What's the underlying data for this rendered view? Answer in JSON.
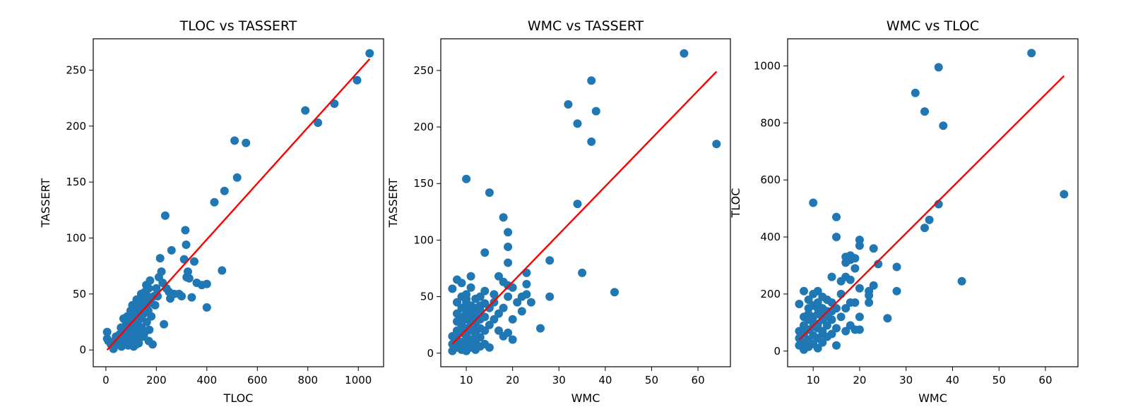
{
  "chart_data": [
    {
      "type": "scatter",
      "title": "TLOC vs TASSERT",
      "xlabel": "TLOC",
      "ylabel": "TASSERT",
      "xlim": [
        -50,
        1100
      ],
      "ylim": [
        -15,
        278
      ],
      "xticks": [
        0,
        200,
        400,
        600,
        800,
        1000
      ],
      "yticks": [
        0,
        50,
        100,
        150,
        200,
        250
      ],
      "point_color": "#1f77b4",
      "fit_color": "#ff0000",
      "fit_line": {
        "x": [
          5,
          1045
        ],
        "y": [
          0,
          260
        ]
      },
      "points": [
        [
          5,
          16
        ],
        [
          5,
          10
        ],
        [
          10,
          8
        ],
        [
          20,
          5
        ],
        [
          25,
          3
        ],
        [
          30,
          1
        ],
        [
          35,
          8
        ],
        [
          40,
          12
        ],
        [
          45,
          6
        ],
        [
          50,
          10
        ],
        [
          55,
          14
        ],
        [
          60,
          8
        ],
        [
          62,
          3
        ],
        [
          65,
          18
        ],
        [
          70,
          12
        ],
        [
          72,
          5
        ],
        [
          75,
          20
        ],
        [
          78,
          9
        ],
        [
          80,
          25
        ],
        [
          82,
          14
        ],
        [
          85,
          30
        ],
        [
          88,
          4
        ],
        [
          90,
          18
        ],
        [
          92,
          8
        ],
        [
          95,
          22
        ],
        [
          98,
          35
        ],
        [
          100,
          28
        ],
        [
          102,
          12
        ],
        [
          105,
          40
        ],
        [
          108,
          18
        ],
        [
          110,
          32
        ],
        [
          112,
          6
        ],
        [
          115,
          25
        ],
        [
          118,
          38
        ],
        [
          120,
          15
        ],
        [
          122,
          45
        ],
        [
          125,
          30
        ],
        [
          128,
          22
        ],
        [
          130,
          35
        ],
        [
          132,
          10
        ],
        [
          135,
          42
        ],
        [
          138,
          28
        ],
        [
          140,
          50
        ],
        [
          142,
          20
        ],
        [
          145,
          38
        ],
        [
          148,
          32
        ],
        [
          150,
          45
        ],
        [
          152,
          15
        ],
        [
          155,
          52
        ],
        [
          158,
          40
        ],
        [
          160,
          58
        ],
        [
          162,
          25
        ],
        [
          165,
          48
        ],
        [
          168,
          35
        ],
        [
          170,
          55
        ],
        [
          172,
          18
        ],
        [
          175,
          62
        ],
        [
          178,
          42
        ],
        [
          180,
          30
        ],
        [
          185,
          5
        ],
        [
          190,
          48
        ],
        [
          195,
          40
        ],
        [
          200,
          55
        ],
        [
          205,
          48
        ],
        [
          210,
          65
        ],
        [
          215,
          82
        ],
        [
          220,
          70
        ],
        [
          225,
          60
        ],
        [
          230,
          23
        ],
        [
          235,
          120
        ],
        [
          240,
          55
        ],
        [
          250,
          52
        ],
        [
          255,
          46
        ],
        [
          260,
          89
        ],
        [
          270,
          50
        ],
        [
          290,
          50
        ],
        [
          300,
          48
        ],
        [
          310,
          81
        ],
        [
          315,
          107
        ],
        [
          318,
          94
        ],
        [
          320,
          65
        ],
        [
          325,
          70
        ],
        [
          330,
          64
        ],
        [
          340,
          47
        ],
        [
          350,
          79
        ],
        [
          360,
          60
        ],
        [
          380,
          58
        ],
        [
          400,
          59
        ],
        [
          400,
          38
        ],
        [
          430,
          132
        ],
        [
          460,
          71
        ],
        [
          470,
          142
        ],
        [
          510,
          187
        ],
        [
          520,
          154
        ],
        [
          555,
          185
        ],
        [
          790,
          214
        ],
        [
          840,
          203
        ],
        [
          905,
          220
        ],
        [
          995,
          241
        ],
        [
          1045,
          265
        ],
        [
          85,
          8
        ],
        [
          95,
          5
        ],
        [
          110,
          3
        ],
        [
          130,
          6
        ],
        [
          150,
          12
        ],
        [
          170,
          8
        ],
        [
          60,
          20
        ],
        [
          70,
          28
        ],
        [
          120,
          5
        ],
        [
          140,
          18
        ]
      ]
    },
    {
      "type": "scatter",
      "title": "WMC vs TASSERT",
      "xlabel": "WMC",
      "ylabel": "TASSERT",
      "xlim": [
        4.5,
        67
      ],
      "ylim": [
        -12,
        278
      ],
      "xticks": [
        10,
        20,
        30,
        40,
        50,
        60
      ],
      "yticks": [
        0,
        50,
        100,
        150,
        200,
        250
      ],
      "point_color": "#1f77b4",
      "fit_color": "#ff0000",
      "fit_line": {
        "x": [
          7,
          64
        ],
        "y": [
          8,
          249
        ]
      },
      "points": [
        [
          7,
          2
        ],
        [
          7,
          8
        ],
        [
          7,
          15
        ],
        [
          7,
          57
        ],
        [
          8,
          5
        ],
        [
          8,
          12
        ],
        [
          8,
          20
        ],
        [
          8,
          28
        ],
        [
          8,
          35
        ],
        [
          8,
          45
        ],
        [
          8,
          65
        ],
        [
          9,
          3
        ],
        [
          9,
          10
        ],
        [
          9,
          18
        ],
        [
          9,
          25
        ],
        [
          9,
          32
        ],
        [
          9,
          40
        ],
        [
          9,
          50
        ],
        [
          9,
          62
        ],
        [
          10,
          2
        ],
        [
          10,
          8
        ],
        [
          10,
          15
        ],
        [
          10,
          22
        ],
        [
          10,
          30
        ],
        [
          10,
          38
        ],
        [
          10,
          45
        ],
        [
          10,
          52
        ],
        [
          10,
          154
        ],
        [
          11,
          5
        ],
        [
          11,
          12
        ],
        [
          11,
          20
        ],
        [
          11,
          28
        ],
        [
          11,
          35
        ],
        [
          11,
          42
        ],
        [
          11,
          58
        ],
        [
          11,
          68
        ],
        [
          12,
          3
        ],
        [
          12,
          10
        ],
        [
          12,
          18
        ],
        [
          12,
          25
        ],
        [
          12,
          32
        ],
        [
          12,
          40
        ],
        [
          12,
          48
        ],
        [
          13,
          6
        ],
        [
          13,
          14
        ],
        [
          13,
          22
        ],
        [
          13,
          30
        ],
        [
          13,
          38
        ],
        [
          13,
          50
        ],
        [
          14,
          8
        ],
        [
          14,
          20
        ],
        [
          14,
          32
        ],
        [
          14,
          44
        ],
        [
          14,
          55
        ],
        [
          14,
          89
        ],
        [
          15,
          5
        ],
        [
          15,
          25
        ],
        [
          15,
          40
        ],
        [
          15,
          142
        ],
        [
          16,
          30
        ],
        [
          16,
          45
        ],
        [
          16,
          52
        ],
        [
          17,
          20
        ],
        [
          17,
          35
        ],
        [
          17,
          68
        ],
        [
          18,
          15
        ],
        [
          18,
          40
        ],
        [
          18,
          63
        ],
        [
          18,
          120
        ],
        [
          19,
          18
        ],
        [
          19,
          50
        ],
        [
          19,
          60
        ],
        [
          19,
          80
        ],
        [
          19,
          94
        ],
        [
          19,
          107
        ],
        [
          20,
          12
        ],
        [
          20,
          30
        ],
        [
          20,
          58
        ],
        [
          21,
          45
        ],
        [
          22,
          37
        ],
        [
          22,
          50
        ],
        [
          23,
          52
        ],
        [
          23,
          61
        ],
        [
          23,
          71
        ],
        [
          24,
          45
        ],
        [
          26,
          22
        ],
        [
          28,
          50
        ],
        [
          28,
          82
        ],
        [
          32,
          220
        ],
        [
          34,
          203
        ],
        [
          34,
          132
        ],
        [
          35,
          71
        ],
        [
          37,
          241
        ],
        [
          37,
          187
        ],
        [
          38,
          214
        ],
        [
          42,
          54
        ],
        [
          57,
          265
        ],
        [
          64,
          185
        ],
        [
          10,
          35
        ],
        [
          11,
          25
        ],
        [
          12,
          15
        ],
        [
          13,
          42
        ],
        [
          9,
          28
        ],
        [
          8,
          18
        ],
        [
          10,
          48
        ],
        [
          12,
          35
        ],
        [
          11,
          8
        ],
        [
          9,
          5
        ]
      ]
    },
    {
      "type": "scatter",
      "title": "WMC vs TLOC",
      "xlabel": "WMC",
      "ylabel": "TLOC",
      "xlim": [
        4.5,
        67
      ],
      "ylim": [
        -55,
        1095
      ],
      "xticks": [
        10,
        20,
        30,
        40,
        50,
        60
      ],
      "yticks": [
        0,
        200,
        400,
        600,
        800,
        1000
      ],
      "point_color": "#1f77b4",
      "fit_color": "#ff0000",
      "fit_line": {
        "x": [
          7,
          64
        ],
        "y": [
          40,
          965
        ]
      },
      "points": [
        [
          7,
          20
        ],
        [
          7,
          45
        ],
        [
          7,
          70
        ],
        [
          7,
          165
        ],
        [
          8,
          5
        ],
        [
          8,
          30
        ],
        [
          8,
          60
        ],
        [
          8,
          90
        ],
        [
          8,
          120
        ],
        [
          8,
          210
        ],
        [
          9,
          15
        ],
        [
          9,
          40
        ],
        [
          9,
          75
        ],
        [
          9,
          110
        ],
        [
          9,
          150
        ],
        [
          9,
          180
        ],
        [
          10,
          25
        ],
        [
          10,
          55
        ],
        [
          10,
          85
        ],
        [
          10,
          120
        ],
        [
          10,
          160
        ],
        [
          10,
          520
        ],
        [
          11,
          10
        ],
        [
          11,
          45
        ],
        [
          11,
          80
        ],
        [
          11,
          130
        ],
        [
          11,
          170
        ],
        [
          11,
          210
        ],
        [
          12,
          30
        ],
        [
          12,
          70
        ],
        [
          12,
          110
        ],
        [
          12,
          150
        ],
        [
          12,
          190
        ],
        [
          13,
          50
        ],
        [
          13,
          90
        ],
        [
          13,
          140
        ],
        [
          13,
          180
        ],
        [
          14,
          60
        ],
        [
          14,
          110
        ],
        [
          14,
          170
        ],
        [
          14,
          260
        ],
        [
          15,
          20
        ],
        [
          15,
          80
        ],
        [
          15,
          150
        ],
        [
          15,
          400
        ],
        [
          15,
          470
        ],
        [
          16,
          120
        ],
        [
          16,
          200
        ],
        [
          16,
          245
        ],
        [
          17,
          70
        ],
        [
          17,
          150
        ],
        [
          17,
          260
        ],
        [
          17,
          310
        ],
        [
          17,
          330
        ],
        [
          18,
          90
        ],
        [
          18,
          170
        ],
        [
          18,
          250
        ],
        [
          18,
          320
        ],
        [
          18,
          335
        ],
        [
          19,
          75
        ],
        [
          19,
          170
        ],
        [
          19,
          290
        ],
        [
          19,
          325
        ],
        [
          20,
          75
        ],
        [
          20,
          120
        ],
        [
          20,
          220
        ],
        [
          20,
          370
        ],
        [
          20,
          390
        ],
        [
          22,
          170
        ],
        [
          22,
          195
        ],
        [
          22,
          210
        ],
        [
          23,
          230
        ],
        [
          23,
          360
        ],
        [
          24,
          305
        ],
        [
          26,
          115
        ],
        [
          28,
          210
        ],
        [
          28,
          295
        ],
        [
          32,
          905
        ],
        [
          34,
          840
        ],
        [
          34,
          432
        ],
        [
          35,
          460
        ],
        [
          37,
          995
        ],
        [
          37,
          515
        ],
        [
          38,
          790
        ],
        [
          42,
          245
        ],
        [
          57,
          1045
        ],
        [
          64,
          550
        ],
        [
          10,
          100
        ],
        [
          11,
          150
        ],
        [
          12,
          60
        ],
        [
          9,
          130
        ],
        [
          13,
          120
        ],
        [
          8,
          80
        ],
        [
          10,
          200
        ],
        [
          12,
          130
        ],
        [
          11,
          95
        ],
        [
          14,
          140
        ]
      ]
    }
  ]
}
